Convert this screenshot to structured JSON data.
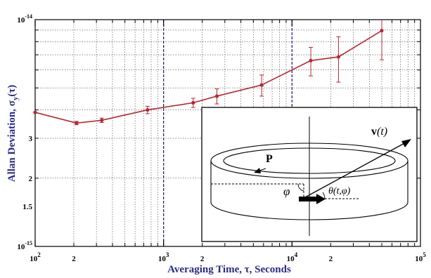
{
  "chart_data": {
    "type": "line",
    "x_scale": "log",
    "y_scale": "log",
    "xlim": [
      100,
      100000
    ],
    "ylim": [
      1e-15,
      1e-14
    ],
    "grid": true,
    "xlabel": "Averaging Time, τ, Seconds",
    "ylabel_main": "Allan Deviation, σ",
    "ylabel_sub": "y",
    "ylabel_tail": "(τ)",
    "x_tick_labels": [
      {
        "value": 100,
        "base": "10",
        "exp": "2"
      },
      {
        "value": 200,
        "base": "2",
        "exp": ""
      },
      {
        "value": 1000,
        "base": "10",
        "exp": "3"
      },
      {
        "value": 2000,
        "base": "2",
        "exp": ""
      },
      {
        "value": 10000,
        "base": "10",
        "exp": "4"
      },
      {
        "value": 20000,
        "base": "2",
        "exp": ""
      },
      {
        "value": 100000,
        "base": "10",
        "exp": "5"
      }
    ],
    "y_tick_labels": [
      {
        "value": 1e-15,
        "base": "10",
        "exp": "-15"
      },
      {
        "value": 1.5e-15,
        "base": "1.5",
        "exp": ""
      },
      {
        "value": 2e-15,
        "base": "2",
        "exp": ""
      },
      {
        "value": 3e-15,
        "base": "3",
        "exp": ""
      },
      {
        "value": 1e-14,
        "base": "10",
        "exp": "-14"
      }
    ],
    "series": [
      {
        "color": "#b22a34",
        "points": [
          {
            "x": 100,
            "y": 3.9e-15,
            "err": 0
          },
          {
            "x": 210,
            "y": 3.5e-15,
            "err": 6e-17
          },
          {
            "x": 330,
            "y": 3.6e-15,
            "err": 8e-17
          },
          {
            "x": 750,
            "y": 4e-15,
            "err": 1.5e-16
          },
          {
            "x": 1700,
            "y": 4.3e-15,
            "err": 2e-16
          },
          {
            "x": 2600,
            "y": 4.6e-15,
            "err": 3.5e-16
          },
          {
            "x": 5800,
            "y": 5.15e-15,
            "err": 5.5e-16
          },
          {
            "x": 14000,
            "y": 6.6e-15,
            "err": 9.5e-16
          },
          {
            "x": 23000,
            "y": 6.85e-15,
            "err": 1.55e-15
          },
          {
            "x": 50000,
            "y": 8.95e-15,
            "err": 2.3e-15
          }
        ]
      }
    ],
    "inset": {
      "vector_label": "v",
      "vector_arg": "(t)",
      "p_label": "P",
      "phi_label": "φ",
      "theta_label": "θ(t,φ)"
    }
  }
}
